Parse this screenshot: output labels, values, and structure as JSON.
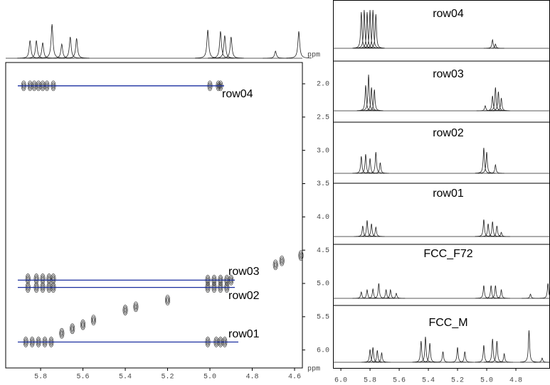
{
  "chart_data": [
    {
      "type": "contour",
      "x_unit": "ppm",
      "xlim": [
        5.965,
        4.563
      ],
      "ylim": [
        1.68,
        6.27
      ],
      "xticks": [
        5.8,
        5.6,
        5.4,
        5.2,
        {
          "value": 5,
          "label": "5.0"
        },
        4.8,
        4.6
      ],
      "yticks": [
        {
          "value": 2,
          "label": "2.0"
        },
        2.5,
        {
          "value": 3,
          "label": "3.0"
        },
        3.5,
        {
          "value": 4,
          "label": "4.0"
        },
        4.5,
        {
          "value": 5,
          "label": "5.0"
        },
        5.5,
        {
          "value": 6,
          "label": "6.0"
        }
      ],
      "peaks": {
        "x": [
          5.88,
          5.85,
          5.83,
          5.81,
          5.79,
          5.77,
          5.74,
          5.0,
          4.96,
          4.95,
          5.86,
          5.82,
          5.79,
          5.76,
          5.74,
          5.86,
          5.82,
          5.79,
          5.76,
          5.74,
          5.01,
          4.98,
          4.95,
          4.92,
          4.9,
          5.01,
          4.98,
          4.95,
          4.92,
          5.87,
          5.84,
          5.81,
          5.78,
          5.75,
          5.01,
          4.97,
          4.95,
          4.93,
          5.7,
          5.65,
          5.6,
          5.55,
          5.4,
          5.35,
          5.2,
          4.69,
          4.66,
          4.57
        ],
        "y": [
          2.03,
          2.03,
          2.03,
          2.03,
          2.03,
          2.03,
          2.03,
          2.03,
          2.03,
          2.03,
          4.93,
          4.93,
          4.93,
          4.93,
          4.93,
          5.06,
          5.06,
          5.06,
          5.06,
          5.06,
          4.95,
          4.95,
          4.95,
          4.95,
          4.95,
          5.06,
          5.06,
          5.06,
          5.06,
          5.88,
          5.88,
          5.88,
          5.88,
          5.88,
          5.88,
          5.88,
          5.88,
          5.88,
          5.75,
          5.68,
          5.62,
          5.55,
          5.4,
          5.35,
          5.25,
          4.72,
          4.66,
          4.58
        ]
      },
      "rows": [
        {
          "name": "row04",
          "ppm": 2.03
        },
        {
          "name": "row03",
          "ppm": 4.95
        },
        {
          "name": "row02",
          "ppm": 5.06
        },
        {
          "name": "row01",
          "ppm": 5.88
        }
      ],
      "color": "#1a2fa0"
    },
    {
      "type": "spectrum",
      "x_unit": "ppm",
      "xlim": [
        5.965,
        4.563
      ],
      "x": [
        5.85,
        5.82,
        5.79,
        5.746,
        5.7,
        5.66,
        5.63,
        5.01,
        4.95,
        4.93,
        4.9,
        4.69,
        4.58
      ],
      "values": [
        25,
        25,
        22,
        48,
        20,
        30,
        28,
        40,
        38,
        32,
        30,
        10,
        38
      ]
    },
    {
      "type": "spectrum",
      "title": "row04",
      "xlim": [
        6.054,
        4.566
      ],
      "x": [
        5.86,
        5.84,
        5.82,
        5.8,
        5.78,
        5.76,
        4.96,
        4.94
      ],
      "values": [
        85,
        90,
        85,
        90,
        90,
        80,
        20,
        10
      ]
    },
    {
      "type": "spectrum",
      "title": "row03",
      "xlim": [
        6.054,
        4.566
      ],
      "x": [
        5.83,
        5.81,
        5.79,
        5.77,
        4.96,
        4.94,
        4.92,
        4.9,
        5.01
      ],
      "values": [
        60,
        85,
        55,
        50,
        35,
        55,
        45,
        30,
        12
      ]
    },
    {
      "type": "spectrum",
      "title": "row02",
      "xlim": [
        6.054,
        4.566
      ],
      "x": [
        5.86,
        5.83,
        5.8,
        5.76,
        5.73,
        5.02,
        5.0,
        4.94
      ],
      "values": [
        40,
        45,
        35,
        50,
        25,
        60,
        50,
        20
      ]
    },
    {
      "type": "spectrum",
      "title": "row01",
      "xlim": [
        6.054,
        4.566
      ],
      "x": [
        5.85,
        5.82,
        5.79,
        5.76,
        5.02,
        4.99,
        4.96,
        4.93,
        4.9
      ],
      "values": [
        25,
        38,
        30,
        22,
        40,
        30,
        35,
        25,
        10
      ]
    },
    {
      "type": "spectrum",
      "title": "FCC_F72",
      "xlim": [
        6.054,
        4.566
      ],
      "x": [
        5.86,
        5.82,
        5.78,
        5.74,
        5.69,
        5.66,
        5.62,
        5.02,
        4.97,
        4.94,
        4.9,
        4.7,
        4.58
      ],
      "values": [
        15,
        20,
        22,
        35,
        20,
        20,
        12,
        30,
        30,
        30,
        20,
        10,
        35
      ]
    },
    {
      "type": "spectrum",
      "title": "FCC_M",
      "x_unit": "ppm",
      "xlim": [
        6.054,
        4.566
      ],
      "xticks": [
        {
          "value": 6,
          "label": "6.0"
        },
        5.8,
        5.6,
        5.4,
        5.2,
        {
          "value": 5,
          "label": "5.0"
        },
        4.8
      ],
      "x": [
        5.8,
        5.78,
        5.75,
        5.72,
        5.45,
        5.42,
        5.39,
        5.3,
        5.2,
        5.15,
        5.02,
        4.96,
        4.93,
        4.88,
        4.71,
        4.62
      ],
      "values": [
        30,
        35,
        28,
        22,
        50,
        60,
        45,
        25,
        35,
        25,
        40,
        55,
        50,
        20,
        75,
        10
      ]
    }
  ]
}
